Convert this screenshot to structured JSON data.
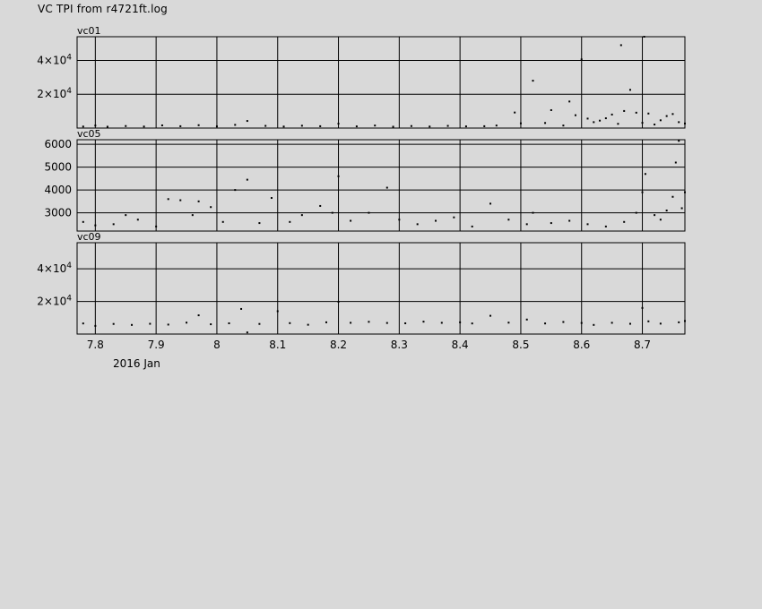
{
  "title": "VC TPI from r4721ft.log",
  "x_axis_caption": "2016 Jan",
  "chart_data": [
    {
      "type": "scatter",
      "panel_label": "vc01",
      "xlim": [
        7.77,
        8.77
      ],
      "ylim": [
        0,
        54000
      ],
      "yticks": [
        {
          "value": 20000,
          "mant": "2×10",
          "exp": "4"
        },
        {
          "value": 40000,
          "mant": "4×10",
          "exp": "4"
        }
      ],
      "grid": true,
      "points": [
        [
          7.78,
          900
        ],
        [
          7.8,
          1500
        ],
        [
          7.82,
          800
        ],
        [
          7.85,
          1200
        ],
        [
          7.88,
          900
        ],
        [
          7.91,
          1600
        ],
        [
          7.94,
          1100
        ],
        [
          7.97,
          1700
        ],
        [
          8.0,
          1000
        ],
        [
          8.03,
          1900
        ],
        [
          8.05,
          4200
        ],
        [
          8.08,
          1300
        ],
        [
          8.11,
          900
        ],
        [
          8.14,
          1400
        ],
        [
          8.17,
          1100
        ],
        [
          8.2,
          2600
        ],
        [
          8.23,
          1000
        ],
        [
          8.26,
          1500
        ],
        [
          8.29,
          800
        ],
        [
          8.32,
          1200
        ],
        [
          8.35,
          900
        ],
        [
          8.38,
          1300
        ],
        [
          8.41,
          1000
        ],
        [
          8.44,
          1100
        ],
        [
          8.46,
          1500
        ],
        [
          8.49,
          9200
        ],
        [
          8.5,
          2800
        ],
        [
          8.52,
          28000
        ],
        [
          8.54,
          3000
        ],
        [
          8.55,
          10600
        ],
        [
          8.57,
          1500
        ],
        [
          8.58,
          15700
        ],
        [
          8.59,
          7600
        ],
        [
          8.6,
          40600
        ],
        [
          8.61,
          5600
        ],
        [
          8.62,
          3500
        ],
        [
          8.63,
          4400
        ],
        [
          8.64,
          5800
        ],
        [
          8.65,
          8000
        ],
        [
          8.66,
          2500
        ],
        [
          8.665,
          49000
        ],
        [
          8.67,
          10100
        ],
        [
          8.68,
          22600
        ],
        [
          8.69,
          9100
        ],
        [
          8.7,
          3100
        ],
        [
          8.703,
          54000
        ],
        [
          8.71,
          8600
        ],
        [
          8.72,
          2100
        ],
        [
          8.73,
          4600
        ],
        [
          8.74,
          7100
        ],
        [
          8.75,
          8300
        ],
        [
          8.76,
          3500
        ],
        [
          8.77,
          2700
        ]
      ]
    },
    {
      "type": "scatter",
      "panel_label": "vc05",
      "xlim": [
        7.77,
        8.77
      ],
      "ylim": [
        2200,
        6200
      ],
      "yticks": [
        {
          "value": 3000,
          "label": "3000"
        },
        {
          "value": 4000,
          "label": "4000"
        },
        {
          "value": 5000,
          "label": "5000"
        },
        {
          "value": 6000,
          "label": "6000"
        }
      ],
      "grid": true,
      "points": [
        [
          7.78,
          2600
        ],
        [
          7.8,
          2450
        ],
        [
          7.83,
          2500
        ],
        [
          7.85,
          2900
        ],
        [
          7.87,
          2700
        ],
        [
          7.9,
          2400
        ],
        [
          7.92,
          3600
        ],
        [
          7.94,
          3550
        ],
        [
          7.96,
          2900
        ],
        [
          7.97,
          3500
        ],
        [
          7.99,
          3250
        ],
        [
          8.01,
          2600
        ],
        [
          8.03,
          4000
        ],
        [
          8.05,
          4450
        ],
        [
          8.07,
          2550
        ],
        [
          8.09,
          3650
        ],
        [
          8.12,
          2600
        ],
        [
          8.14,
          2900
        ],
        [
          8.17,
          3300
        ],
        [
          8.19,
          3000
        ],
        [
          8.2,
          4600
        ],
        [
          8.22,
          2650
        ],
        [
          8.25,
          3000
        ],
        [
          8.28,
          4100
        ],
        [
          8.3,
          2700
        ],
        [
          8.33,
          2500
        ],
        [
          8.36,
          2650
        ],
        [
          8.39,
          2800
        ],
        [
          8.42,
          2400
        ],
        [
          8.45,
          3400
        ],
        [
          8.48,
          2700
        ],
        [
          8.51,
          2500
        ],
        [
          8.52,
          3000
        ],
        [
          8.55,
          2550
        ],
        [
          8.58,
          2650
        ],
        [
          8.61,
          2500
        ],
        [
          8.64,
          2400
        ],
        [
          8.67,
          2600
        ],
        [
          8.69,
          3000
        ],
        [
          8.7,
          3900
        ],
        [
          8.705,
          4700
        ],
        [
          8.72,
          2900
        ],
        [
          8.73,
          2700
        ],
        [
          8.74,
          3100
        ],
        [
          8.75,
          3700
        ],
        [
          8.755,
          5200
        ],
        [
          8.76,
          6150
        ],
        [
          8.765,
          3200
        ],
        [
          8.77,
          3900
        ]
      ]
    },
    {
      "type": "scatter",
      "panel_label": "vc09",
      "xlim": [
        7.77,
        8.77
      ],
      "ylim": [
        0,
        56000
      ],
      "yticks": [
        {
          "value": 20000,
          "mant": "2×10",
          "exp": "4"
        },
        {
          "value": 40000,
          "mant": "4×10",
          "exp": "4"
        }
      ],
      "xticks": [
        {
          "value": 7.8,
          "label": "7.8"
        },
        {
          "value": 7.9,
          "label": "7.9"
        },
        {
          "value": 8.0,
          "label": "8"
        },
        {
          "value": 8.1,
          "label": "8.1"
        },
        {
          "value": 8.2,
          "label": "8.2"
        },
        {
          "value": 8.3,
          "label": "8.3"
        },
        {
          "value": 8.4,
          "label": "8.4"
        },
        {
          "value": 8.5,
          "label": "8.5"
        },
        {
          "value": 8.6,
          "label": "8.6"
        },
        {
          "value": 8.7,
          "label": "8.7"
        }
      ],
      "grid": true,
      "points": [
        [
          7.78,
          6500
        ],
        [
          7.8,
          5000
        ],
        [
          7.83,
          6200
        ],
        [
          7.86,
          5600
        ],
        [
          7.89,
          6300
        ],
        [
          7.92,
          5800
        ],
        [
          7.95,
          7000
        ],
        [
          7.97,
          11500
        ],
        [
          7.99,
          6000
        ],
        [
          8.02,
          6600
        ],
        [
          8.04,
          15400
        ],
        [
          8.05,
          1000
        ],
        [
          8.07,
          6200
        ],
        [
          8.1,
          14000
        ],
        [
          8.12,
          6700
        ],
        [
          8.15,
          5700
        ],
        [
          8.18,
          7200
        ],
        [
          8.2,
          19800
        ],
        [
          8.22,
          6900
        ],
        [
          8.25,
          7500
        ],
        [
          8.28,
          6800
        ],
        [
          8.31,
          6600
        ],
        [
          8.34,
          7600
        ],
        [
          8.37,
          6900
        ],
        [
          8.4,
          7200
        ],
        [
          8.42,
          6500
        ],
        [
          8.45,
          11200
        ],
        [
          8.48,
          7000
        ],
        [
          8.51,
          8900
        ],
        [
          8.54,
          6500
        ],
        [
          8.57,
          7400
        ],
        [
          8.6,
          6800
        ],
        [
          8.62,
          5600
        ],
        [
          8.65,
          6900
        ],
        [
          8.68,
          6300
        ],
        [
          8.7,
          16000
        ],
        [
          8.71,
          7800
        ],
        [
          8.73,
          6400
        ],
        [
          8.76,
          7200
        ],
        [
          8.77,
          8000
        ]
      ]
    }
  ]
}
